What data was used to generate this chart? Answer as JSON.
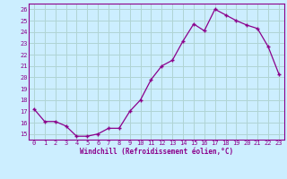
{
  "hours": [
    0,
    1,
    2,
    3,
    4,
    5,
    6,
    7,
    8,
    9,
    10,
    11,
    12,
    13,
    14,
    15,
    16,
    17,
    18,
    19,
    20,
    21,
    22,
    23
  ],
  "values": [
    17.2,
    16.1,
    16.1,
    15.7,
    14.8,
    14.8,
    15.0,
    15.5,
    15.5,
    17.0,
    18.0,
    19.8,
    21.0,
    21.5,
    23.2,
    24.7,
    24.1,
    26.0,
    25.5,
    25.0,
    24.6,
    24.3,
    22.7,
    20.3
  ],
  "line_color": "#8B008B",
  "marker_color": "#8B008B",
  "bg_color": "#cceeff",
  "grid_color": "#b0d4d4",
  "text_color": "#8B008B",
  "xlabel": "Windchill (Refroidissement éolien,°C)",
  "ylim": [
    14.5,
    26.5
  ],
  "xlim": [
    -0.5,
    23.5
  ],
  "yticks": [
    15,
    16,
    17,
    18,
    19,
    20,
    21,
    22,
    23,
    24,
    25,
    26
  ],
  "xticks": [
    0,
    1,
    2,
    3,
    4,
    5,
    6,
    7,
    8,
    9,
    10,
    11,
    12,
    13,
    14,
    15,
    16,
    17,
    18,
    19,
    20,
    21,
    22,
    23
  ]
}
